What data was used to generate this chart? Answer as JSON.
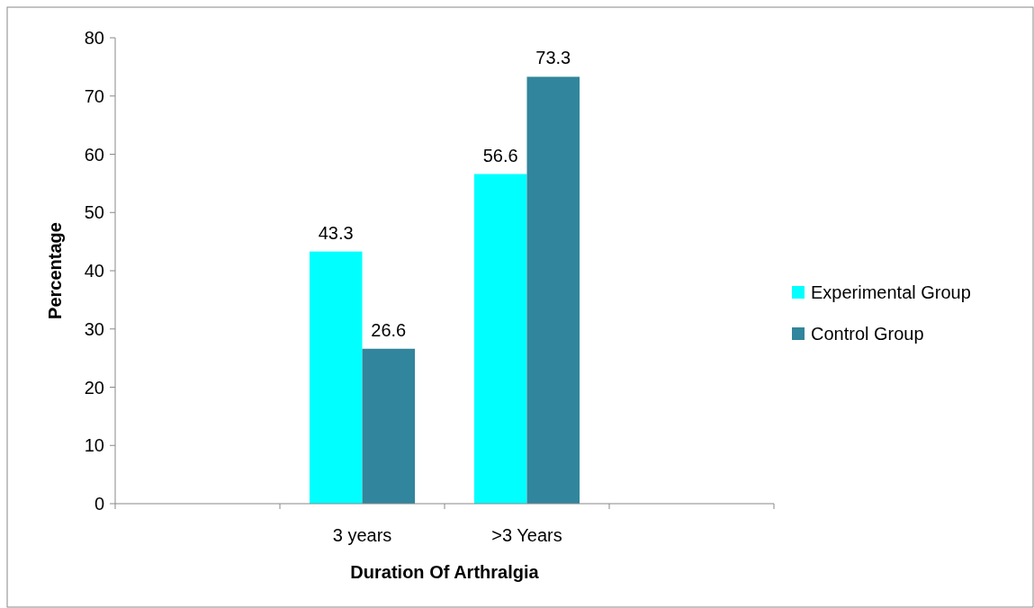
{
  "chart_data": {
    "type": "bar",
    "xlabel": "Duration Of Arthralgia",
    "ylabel": "Percentage",
    "categories": [
      null,
      "3 years",
      ">3 Years",
      null
    ],
    "series": [
      {
        "name": "Experimental Group",
        "color": "#00ffff",
        "values": [
          null,
          43.3,
          56.6,
          null
        ]
      },
      {
        "name": "Control Group",
        "color": "#31859c",
        "values": [
          null,
          26.6,
          73.3,
          null
        ]
      }
    ],
    "ylim": [
      0,
      80
    ],
    "yticks": [
      0,
      10,
      20,
      30,
      40,
      50,
      60,
      70,
      80
    ],
    "data_labels": true,
    "legend": "right",
    "grid": false
  }
}
